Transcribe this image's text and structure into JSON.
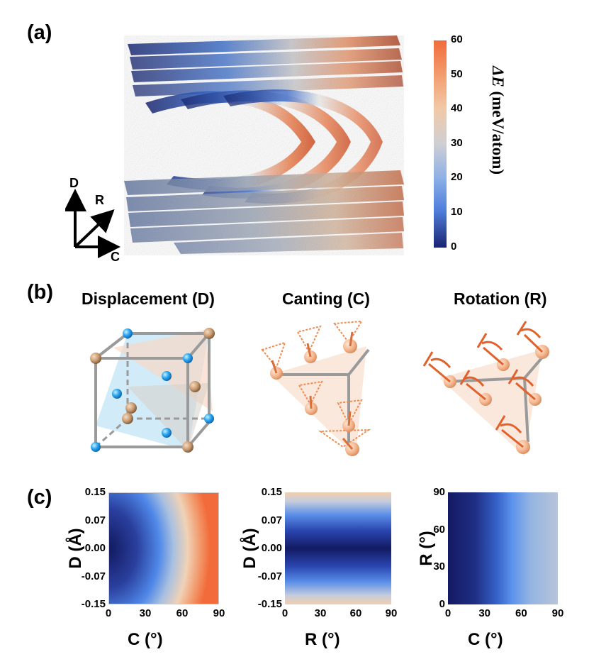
{
  "panels": {
    "a": "(a)",
    "b": "(b)",
    "c": "(c)"
  },
  "axes_triad": {
    "up": "D",
    "diag": "R",
    "right": "C"
  },
  "colorbar": {
    "label_italic": "ΔE",
    "label_unit": " (meV/atom)",
    "ticks": [
      "60",
      "50",
      "40",
      "30",
      "20",
      "10",
      "0"
    ],
    "min": 0,
    "max": 60,
    "colors": {
      "low": "#1a2370",
      "mid_low": "#5a8ee6",
      "mid": "#d9d6d2",
      "mid_high": "#f2b88f",
      "high": "#f26b3a"
    }
  },
  "panel_b_titles": {
    "displacement": "Displacement (D)",
    "canting": "Canting (C)",
    "rotation": "Rotation (R)"
  },
  "chart_data": [
    {
      "type": "heatmap",
      "title": "",
      "xlabel": "C (°)",
      "ylabel": "D (Å)",
      "xticks": [
        "0",
        "30",
        "60",
        "90"
      ],
      "yticks": [
        "0.15",
        "0.07",
        "0.00",
        "-0.07",
        "-0.15"
      ],
      "xlim": [
        0,
        90
      ],
      "ylim": [
        -0.15,
        0.15
      ]
    },
    {
      "type": "heatmap",
      "title": "",
      "xlabel": "R (°)",
      "ylabel": "D (Å)",
      "xticks": [
        "0",
        "30",
        "60",
        "90"
      ],
      "yticks": [
        "0.15",
        "0.07",
        "0.00",
        "-0.07",
        "-0.15"
      ],
      "xlim": [
        0,
        90
      ],
      "ylim": [
        -0.15,
        0.15
      ]
    },
    {
      "type": "heatmap",
      "title": "",
      "xlabel": "C (°)",
      "ylabel": "R (°)",
      "xticks": [
        "0",
        "30",
        "60",
        "90"
      ],
      "yticks": [
        "90",
        "60",
        "30",
        "0"
      ],
      "xlim": [
        0,
        90
      ],
      "ylim": [
        0,
        90
      ]
    }
  ]
}
